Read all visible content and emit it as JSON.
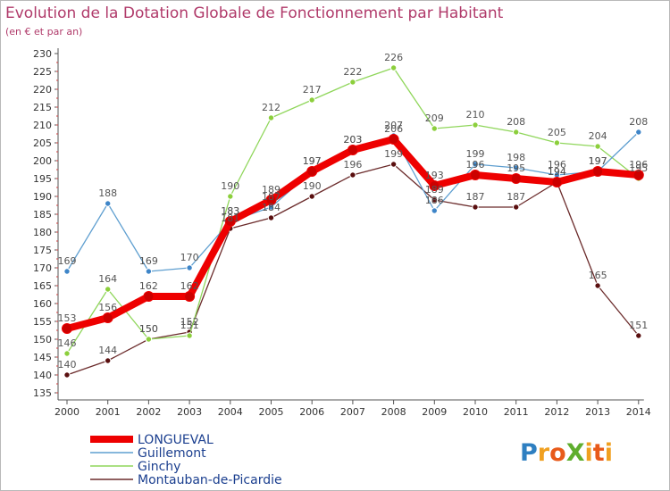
{
  "chart_data": {
    "type": "line",
    "title": "Evolution de la Dotation Globale de Fonctionnement par Habitant",
    "subtitle": "(en € et par an)",
    "x": [
      "2000",
      "2001",
      "2002",
      "2003",
      "2004",
      "2005",
      "2006",
      "2007",
      "2008",
      "2009",
      "2010",
      "2011",
      "2012",
      "2013",
      "2014"
    ],
    "ylim": [
      135,
      230
    ],
    "yticks": [
      135,
      140,
      145,
      150,
      155,
      160,
      165,
      170,
      175,
      180,
      185,
      190,
      195,
      200,
      205,
      210,
      215,
      220,
      225,
      230
    ],
    "series": [
      {
        "name": "Montauban-de-Picardie",
        "color": "#6b2b2b",
        "width": 1.3,
        "marker": "#5a0f0f",
        "values": [
          140,
          144,
          150,
          152,
          181,
          184,
          190,
          196,
          199,
          189,
          187,
          187,
          194,
          165,
          151
        ]
      },
      {
        "name": "Ginchy",
        "color": "#8fd65a",
        "width": 1.3,
        "marker": "#8ccf3c",
        "values": [
          146,
          164,
          150,
          151,
          190,
          212,
          217,
          222,
          226,
          209,
          210,
          208,
          205,
          204,
          195
        ]
      },
      {
        "name": "Guillemont",
        "color": "#5f9fd0",
        "width": 1.3,
        "marker": "#3e85c8",
        "values": [
          169,
          188,
          169,
          170,
          183,
          187,
          197,
          203,
          207,
          186,
          199,
          198,
          196,
          197,
          208
        ]
      },
      {
        "name": "LONGUEVAL",
        "color": "#ee0000",
        "width": 8,
        "marker": "#cc0000",
        "values": [
          153,
          156,
          162,
          162,
          183,
          189,
          197,
          203,
          206,
          193,
          196,
          195,
          194,
          197,
          196
        ]
      }
    ],
    "labels": [
      {
        "text": "169",
        "x": 0,
        "y": 169,
        "side": "above"
      },
      {
        "text": "153",
        "x": 0,
        "y": 153,
        "side": "above"
      },
      {
        "text": "146",
        "x": 0,
        "y": 146,
        "side": "above"
      },
      {
        "text": "140",
        "x": 0,
        "y": 140,
        "side": "above"
      },
      {
        "text": "188",
        "x": 1,
        "y": 188,
        "side": "above"
      },
      {
        "text": "164",
        "x": 1,
        "y": 164,
        "side": "above"
      },
      {
        "text": "156",
        "x": 1,
        "y": 156,
        "side": "above"
      },
      {
        "text": "144",
        "x": 1,
        "y": 144,
        "side": "above"
      },
      {
        "text": "169",
        "x": 2,
        "y": 169,
        "side": "above"
      },
      {
        "text": "162",
        "x": 2,
        "y": 162,
        "side": "above"
      },
      {
        "text": "150",
        "x": 2,
        "y": 150,
        "side": "above"
      },
      {
        "text": "150",
        "x": 2,
        "y": 150,
        "side": "above"
      },
      {
        "text": "170",
        "x": 3,
        "y": 170,
        "side": "above"
      },
      {
        "text": "162",
        "x": 3,
        "y": 162,
        "side": "above"
      },
      {
        "text": "152",
        "x": 3,
        "y": 152,
        "side": "above"
      },
      {
        "text": "151",
        "x": 3,
        "y": 151,
        "side": "above"
      },
      {
        "text": "190",
        "x": 4,
        "y": 190,
        "side": "above"
      },
      {
        "text": "183",
        "x": 4,
        "y": 183,
        "side": "above"
      },
      {
        "text": "183",
        "x": 4,
        "y": 183,
        "side": "above"
      },
      {
        "text": "181",
        "x": 4,
        "y": 181,
        "side": "above"
      },
      {
        "text": "212",
        "x": 5,
        "y": 212,
        "side": "above"
      },
      {
        "text": "189",
        "x": 5,
        "y": 189,
        "side": "above"
      },
      {
        "text": "187",
        "x": 5,
        "y": 187,
        "side": "above"
      },
      {
        "text": "184",
        "x": 5,
        "y": 184,
        "side": "above"
      },
      {
        "text": "217",
        "x": 6,
        "y": 217,
        "side": "above"
      },
      {
        "text": "197",
        "x": 6,
        "y": 197,
        "side": "above"
      },
      {
        "text": "197",
        "x": 6,
        "y": 197,
        "side": "above"
      },
      {
        "text": "190",
        "x": 6,
        "y": 190,
        "side": "above"
      },
      {
        "text": "222",
        "x": 7,
        "y": 222,
        "side": "above"
      },
      {
        "text": "203",
        "x": 7,
        "y": 203,
        "side": "above"
      },
      {
        "text": "203",
        "x": 7,
        "y": 203,
        "side": "above"
      },
      {
        "text": "196",
        "x": 7,
        "y": 196,
        "side": "above"
      },
      {
        "text": "226",
        "x": 8,
        "y": 226,
        "side": "above"
      },
      {
        "text": "207",
        "x": 8,
        "y": 207,
        "side": "above"
      },
      {
        "text": "206",
        "x": 8,
        "y": 206,
        "side": "above"
      },
      {
        "text": "199",
        "x": 8,
        "y": 199,
        "side": "above"
      },
      {
        "text": "209",
        "x": 9,
        "y": 209,
        "side": "above"
      },
      {
        "text": "193",
        "x": 9,
        "y": 193,
        "side": "above"
      },
      {
        "text": "189",
        "x": 9,
        "y": 189,
        "side": "above"
      },
      {
        "text": "186",
        "x": 9,
        "y": 186,
        "side": "above"
      },
      {
        "text": "210",
        "x": 10,
        "y": 210,
        "side": "above"
      },
      {
        "text": "199",
        "x": 10,
        "y": 199,
        "side": "above"
      },
      {
        "text": "196",
        "x": 10,
        "y": 196,
        "side": "above"
      },
      {
        "text": "187",
        "x": 10,
        "y": 187,
        "side": "above"
      },
      {
        "text": "208",
        "x": 11,
        "y": 208,
        "side": "above"
      },
      {
        "text": "198",
        "x": 11,
        "y": 198,
        "side": "above"
      },
      {
        "text": "195",
        "x": 11,
        "y": 195,
        "side": "above"
      },
      {
        "text": "187",
        "x": 11,
        "y": 187,
        "side": "above"
      },
      {
        "text": "205",
        "x": 12,
        "y": 205,
        "side": "above"
      },
      {
        "text": "196",
        "x": 12,
        "y": 196,
        "side": "above"
      },
      {
        "text": "194",
        "x": 12,
        "y": 194,
        "side": "above"
      },
      {
        "text": "194",
        "x": 12,
        "y": 194,
        "side": "above"
      },
      {
        "text": "204",
        "x": 13,
        "y": 204,
        "side": "above"
      },
      {
        "text": "197",
        "x": 13,
        "y": 197,
        "side": "above"
      },
      {
        "text": "197",
        "x": 13,
        "y": 197,
        "side": "above"
      },
      {
        "text": "165",
        "x": 13,
        "y": 165,
        "side": "above"
      },
      {
        "text": "208",
        "x": 14,
        "y": 208,
        "side": "above"
      },
      {
        "text": "196",
        "x": 14,
        "y": 196,
        "side": "above"
      },
      {
        "text": "195",
        "x": 14,
        "y": 195,
        "side": "above"
      },
      {
        "text": "151",
        "x": 14,
        "y": 151,
        "side": "above"
      }
    ],
    "legend": [
      {
        "name": "LONGUEVAL",
        "color": "#ee0000",
        "thick": true
      },
      {
        "name": "Guillemont",
        "color": "#5f9fd0",
        "thick": false
      },
      {
        "name": "Ginchy",
        "color": "#8fd65a",
        "thick": false
      },
      {
        "name": "Montauban-de-Picardie",
        "color": "#6b2b2b",
        "thick": false
      }
    ],
    "grid": false,
    "legend_position": "bottom-left"
  },
  "logo": {
    "text": "ProXiti",
    "letters": [
      {
        "ch": "P",
        "color": "#2e7fc1"
      },
      {
        "ch": "r",
        "color": "#f0a020"
      },
      {
        "ch": "o",
        "color": "#e85a1a"
      },
      {
        "ch": "X",
        "color": "#5fae2e"
      },
      {
        "ch": "i",
        "color": "#f0a020"
      },
      {
        "ch": "t",
        "color": "#e85a1a"
      },
      {
        "ch": "i",
        "color": "#f0a020"
      }
    ]
  }
}
